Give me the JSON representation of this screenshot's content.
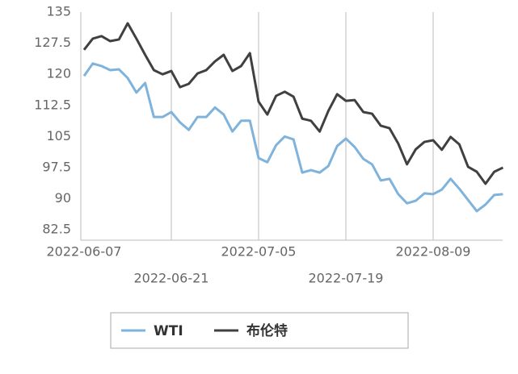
{
  "chart_data": {
    "type": "line",
    "categories": [
      "2022-06-07",
      null,
      null,
      null,
      null,
      null,
      null,
      null,
      null,
      null,
      "2022-06-21",
      null,
      null,
      null,
      null,
      null,
      null,
      null,
      null,
      null,
      "2022-07-05",
      null,
      null,
      null,
      null,
      null,
      null,
      null,
      null,
      null,
      "2022-07-19",
      null,
      null,
      null,
      null,
      null,
      null,
      null,
      null,
      null,
      "2022-08-09",
      null,
      null,
      null,
      null,
      null,
      null,
      null,
      null
    ],
    "series": [
      {
        "name": "WTI",
        "color": "#7fb3db",
        "values": [
          119.6,
          122.6,
          122,
          121,
          121.2,
          119.1,
          115.6,
          117.9,
          109.7,
          109.7,
          110.9,
          108.4,
          106.6,
          109.7,
          109.7,
          112,
          110.3,
          106.2,
          108.8,
          108.8,
          99.8,
          98.8,
          102.9,
          105,
          104.3,
          96.3,
          96.9,
          96.3,
          97.9,
          102.7,
          104.5,
          102.5,
          99.6,
          98.3,
          94.4,
          94.8,
          91.1,
          88.9,
          89.5,
          91.3,
          91.1,
          92.2,
          94.8,
          92.4,
          89.7,
          87,
          88.6,
          90.9,
          91.1
        ]
      },
      {
        "name": "布伦特",
        "color": "#404040",
        "values": [
          125.9,
          128.6,
          129.2,
          128,
          128.4,
          132.3,
          128.6,
          124.7,
          121,
          120,
          120.8,
          116.9,
          117.7,
          120.2,
          121,
          123.1,
          124.7,
          120.8,
          122,
          125.1,
          113.4,
          110.3,
          114.8,
          115.8,
          114.6,
          109.3,
          108.8,
          106.2,
          111.2,
          115.2,
          113.6,
          113.8,
          110.9,
          110.5,
          107.6,
          107,
          103.3,
          98.3,
          101.9,
          103.7,
          104.1,
          101.8,
          104.9,
          103.1,
          97.7,
          96.5,
          93.6,
          96.5,
          97.5
        ]
      }
    ],
    "ylim": [
      80,
      135
    ],
    "yticks": [
      82.5,
      90,
      97.5,
      105,
      112.5,
      120,
      127.5,
      135
    ],
    "grid": true,
    "legend": "bottom"
  }
}
